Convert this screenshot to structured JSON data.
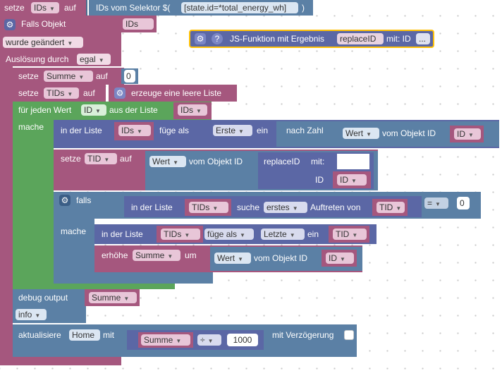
{
  "colors": {
    "variables": "#a5577e",
    "logic": "#5b80a5",
    "text": "#5ba55b",
    "procedure": "#5b67a5",
    "function_highlight": "#ffc107",
    "workspace_bg": "#ffffff"
  },
  "set_ids": {
    "setze": "setze",
    "var": "IDs",
    "auf": "auf",
    "selector_label": "IDs vom Selektor $(",
    "selector_value": "[state.id=*total_energy_wh]",
    "close_paren": ")"
  },
  "trigger": {
    "label": "Falls Objekt",
    "var": "IDs",
    "event": "wurde geändert",
    "trigger_label": "Auslösung durch",
    "trigger_value": "egal"
  },
  "js_function": {
    "label": "JS-Funktion mit Ergebnis",
    "name": "replaceID",
    "param_label": "mit: ID",
    "more": "..."
  },
  "set_sum": {
    "setze": "setze",
    "var": "Summe",
    "auf": "auf",
    "value": "0"
  },
  "set_tids": {
    "setze": "setze",
    "var": "TIDs",
    "auf": "auf",
    "list_label": "erzeuge eine leere Liste"
  },
  "foreach": {
    "label": "für jeden Wert",
    "var": "ID",
    "from": "aus der Liste",
    "list": "IDs",
    "mache": "mache"
  },
  "insert1": {
    "in_list": "in der Liste",
    "list": "IDs",
    "insert_as": "füge als",
    "position": "Erste",
    "ein": "ein",
    "after": "nach Zahl",
    "value_label": "Wert",
    "of_obj": "vom Objekt ID",
    "id": "ID"
  },
  "set_tid": {
    "setze": "setze",
    "var": "TID",
    "auf": "auf",
    "value_label": "Wert",
    "of_obj": "vom Objekt ID",
    "func": "replaceID",
    "mit": "mit:",
    "param": "ID",
    "id": "ID"
  },
  "if_block": {
    "falls": "falls",
    "in_list": "in der Liste",
    "list": "TIDs",
    "search": "suche",
    "occurrence": "erstes",
    "occ_label": "Auftreten von",
    "var": "TID",
    "op": "=",
    "value": "0",
    "mache": "mache"
  },
  "insert2": {
    "in_list": "in der Liste",
    "list": "TIDs",
    "insert_as": "füge als",
    "position": "Letzte",
    "ein": "ein",
    "var": "TID"
  },
  "increment": {
    "label": "erhöhe",
    "var": "Summe",
    "um": "um",
    "value_label": "Wert",
    "of_obj": "vom Objekt ID",
    "id": "ID"
  },
  "debug": {
    "label": "debug output",
    "var": "Summe",
    "level": "info"
  },
  "update": {
    "label": "aktualisiere",
    "target": "Home",
    "mit": "mit",
    "var": "Summe",
    "op": "÷",
    "value": "1000",
    "delay_label": "mit Verzögerung"
  }
}
